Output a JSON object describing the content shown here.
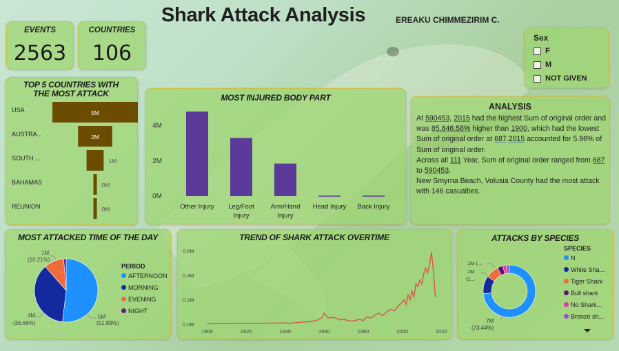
{
  "title": "Shark Attack Analysis",
  "author": "EREAKU CHIMMEZIRIM C.",
  "kpis": {
    "events_label": "EVENTS",
    "events_value": "2563",
    "countries_label": "COUNTRIES",
    "countries_value": "106"
  },
  "sex_slicer": {
    "title": "Sex",
    "options": [
      "F",
      "M",
      "NOT GIVEN"
    ]
  },
  "analysis": {
    "title": "ANALYSIS",
    "p1_a": "At ",
    "p1_v1": "590453",
    "p1_b": ", ",
    "p1_v2": "2015",
    "p1_c": " had the highest Sum of original order and was ",
    "p1_v3": "85,846.58%",
    "p1_d": " higher than ",
    "p1_v4": "1900",
    "p1_e": ", which had the lowest Sum of original order at ",
    "p1_v5": "687",
    "p1_f": ".",
    "p1_v6": "2015",
    "p1_g": " accounted for 5.96% of Sum of original order.",
    "p2_a": "Across all ",
    "p2_v1": "111",
    "p2_b": " Year, Sum of original order ranged from ",
    "p2_v2": "687",
    "p2_c": " to ",
    "p2_v3": "590453",
    "p2_d": ".",
    "p3": "New Smyrna Beach, Volusia County had the most attack with 146 casualties."
  },
  "chart_data": [
    {
      "id": "top_countries",
      "type": "bar",
      "orientation": "horizontal",
      "title": "TOP 5 COUNTRIES WITH THE MOST ATTACK",
      "categories": [
        "USA",
        "AUSTRA...",
        "SOUTH ...",
        "BAHAMAS",
        "REUNION"
      ],
      "values": [
        5,
        2,
        1,
        0.02,
        0.02
      ],
      "data_labels": [
        "5M",
        "2M",
        "1M",
        "0M",
        "0M"
      ],
      "color": "#6b4c00"
    },
    {
      "id": "injured_body_part",
      "type": "bar",
      "title": "MOST INJURED BODY PART",
      "categories": [
        "Other Injury",
        "Leg/Foot Injury",
        "Arm/Hand Injury",
        "Head Injury",
        "Back Injury"
      ],
      "category_lines": [
        [
          "Other Injury"
        ],
        [
          "Leg/Foot",
          "Injury"
        ],
        [
          "Arm/Hand",
          "Injury"
        ],
        [
          "Head Injury"
        ],
        [
          "Back Injury"
        ]
      ],
      "values": [
        4.8,
        3.3,
        1.85,
        0.03,
        0.03
      ],
      "ylim": [
        0,
        5
      ],
      "y_ticks": [
        0,
        2,
        4
      ],
      "y_tick_labels": [
        "0M",
        "2M",
        "4M"
      ],
      "color": "#5b3a99"
    },
    {
      "id": "time_of_day",
      "type": "pie",
      "title": "MOST ATTACKED TIME OF THE DAY",
      "legend_title": "PERIOD",
      "legend_position": "right",
      "slices": [
        {
          "label": "AFTERNOON",
          "percent": 51.89,
          "value_label": "5M",
          "pct_label": "(51.89%)",
          "color": "#1e90ff"
        },
        {
          "label": "MORNING",
          "percent": 36.66,
          "value_label": "4M",
          "pct_label": "(36.66%)",
          "color": "#13299e"
        },
        {
          "label": "EVENING",
          "percent": 10.21,
          "value_label": "1M",
          "pct_label": "(10.21%)",
          "color": "#ee6b3b"
        },
        {
          "label": "NIGHT",
          "percent": 1.24,
          "value_label": "",
          "pct_label": "",
          "color": "#6b1a7a"
        }
      ]
    },
    {
      "id": "trend",
      "type": "line",
      "title": "TREND OF SHARK ATTACK OVERTIME",
      "xlim": [
        1897,
        2021
      ],
      "ylim": [
        0,
        0.62
      ],
      "x_ticks": [
        1900,
        1920,
        1940,
        1960,
        1980,
        2000,
        2020
      ],
      "y_ticks": [
        0,
        0.2,
        0.4,
        0.6
      ],
      "y_tick_labels": [
        "0.0M",
        "0.2M",
        "0.4M",
        "0.6M"
      ],
      "color": "#d9534f",
      "x": [
        1900,
        1905,
        1910,
        1915,
        1920,
        1925,
        1930,
        1935,
        1940,
        1942,
        1945,
        1948,
        1950,
        1952,
        1954,
        1956,
        1958,
        1959,
        1960,
        1962,
        1964,
        1966,
        1968,
        1970,
        1972,
        1974,
        1976,
        1978,
        1980,
        1982,
        1984,
        1986,
        1988,
        1990,
        1992,
        1994,
        1996,
        1998,
        2000,
        2001,
        2002,
        2003,
        2004,
        2005,
        2006,
        2007,
        2008,
        2009,
        2010,
        2011,
        2012,
        2013,
        2014,
        2015,
        2016,
        2017
      ],
      "y": [
        0.002,
        0.004,
        0.004,
        0.005,
        0.006,
        0.007,
        0.008,
        0.009,
        0.01,
        0.006,
        0.012,
        0.015,
        0.018,
        0.02,
        0.025,
        0.03,
        0.045,
        0.055,
        0.09,
        0.05,
        0.055,
        0.05,
        0.035,
        0.04,
        0.03,
        0.025,
        0.03,
        0.04,
        0.03,
        0.06,
        0.05,
        0.075,
        0.09,
        0.07,
        0.1,
        0.12,
        0.11,
        0.15,
        0.18,
        0.2,
        0.16,
        0.24,
        0.2,
        0.27,
        0.22,
        0.33,
        0.31,
        0.36,
        0.33,
        0.41,
        0.46,
        0.42,
        0.49,
        0.59,
        0.43,
        0.22
      ]
    },
    {
      "id": "species",
      "type": "pie",
      "variant": "donut",
      "title": "ATTACKS BY SPECIES",
      "legend_title": "SPECIES",
      "legend_position": "right",
      "slices": [
        {
          "label": "N",
          "percent": 73.44,
          "value_label": "7M",
          "pct_label": "(73.44%)",
          "color": "#1e90ff"
        },
        {
          "label": "White Sha...",
          "percent": 11,
          "value_label": "1M",
          "pct_label": "(1...",
          "color": "#13299e"
        },
        {
          "label": "Tiger Shark",
          "percent": 8,
          "value_label": "1M (...",
          "pct_label": "",
          "color": "#ee6b3b"
        },
        {
          "label": "Bull shark",
          "percent": 3.5,
          "value_label": "",
          "pct_label": "",
          "color": "#5a1670"
        },
        {
          "label": "No Shark...",
          "percent": 2.2,
          "value_label": "",
          "pct_label": "",
          "color": "#e03aa8"
        },
        {
          "label": "Bronze sh...",
          "percent": 1.86,
          "value_label": "",
          "pct_label": "",
          "color": "#8e55c9"
        }
      ]
    }
  ]
}
